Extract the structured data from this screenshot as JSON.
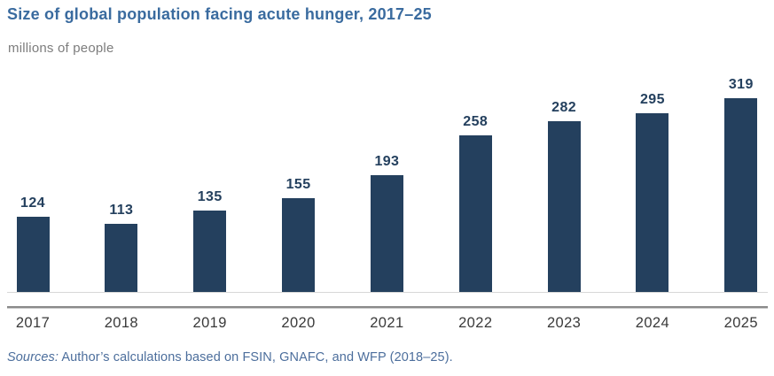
{
  "header": {
    "title": "Size of global population facing acute hunger, 2017–25",
    "subtitle": "millions of people"
  },
  "chart_data": {
    "type": "bar",
    "title": "Size of global population facing acute hunger, 2017–25",
    "unit_label": "millions of people",
    "categories": [
      "2017",
      "2018",
      "2019",
      "2020",
      "2021",
      "2022",
      "2023",
      "2024",
      "2025"
    ],
    "values": [
      124,
      113,
      135,
      155,
      193,
      258,
      282,
      295,
      319
    ],
    "xlabel": "",
    "ylabel": "millions of people",
    "ylim": [
      0,
      350
    ],
    "grid": false,
    "legend": "none",
    "value_labels_shown": true,
    "bar_color": "#24405E"
  },
  "footer": {
    "sources_prefix": "Sources:",
    "sources_text": " Author’s calculations based on FSIN, GNAFC, and WFP (2018–25)."
  },
  "colors": {
    "title": "#3A6B9F",
    "subtitle": "#7D7D7D",
    "bar": "#24405E",
    "value_label": "#24405E",
    "year_label": "#3A3A3A",
    "source_text": "#4C6E9C",
    "baseline_line": "#D8D8D8",
    "axis_line": "#8A8A8A",
    "background": "#FFFFFF"
  }
}
